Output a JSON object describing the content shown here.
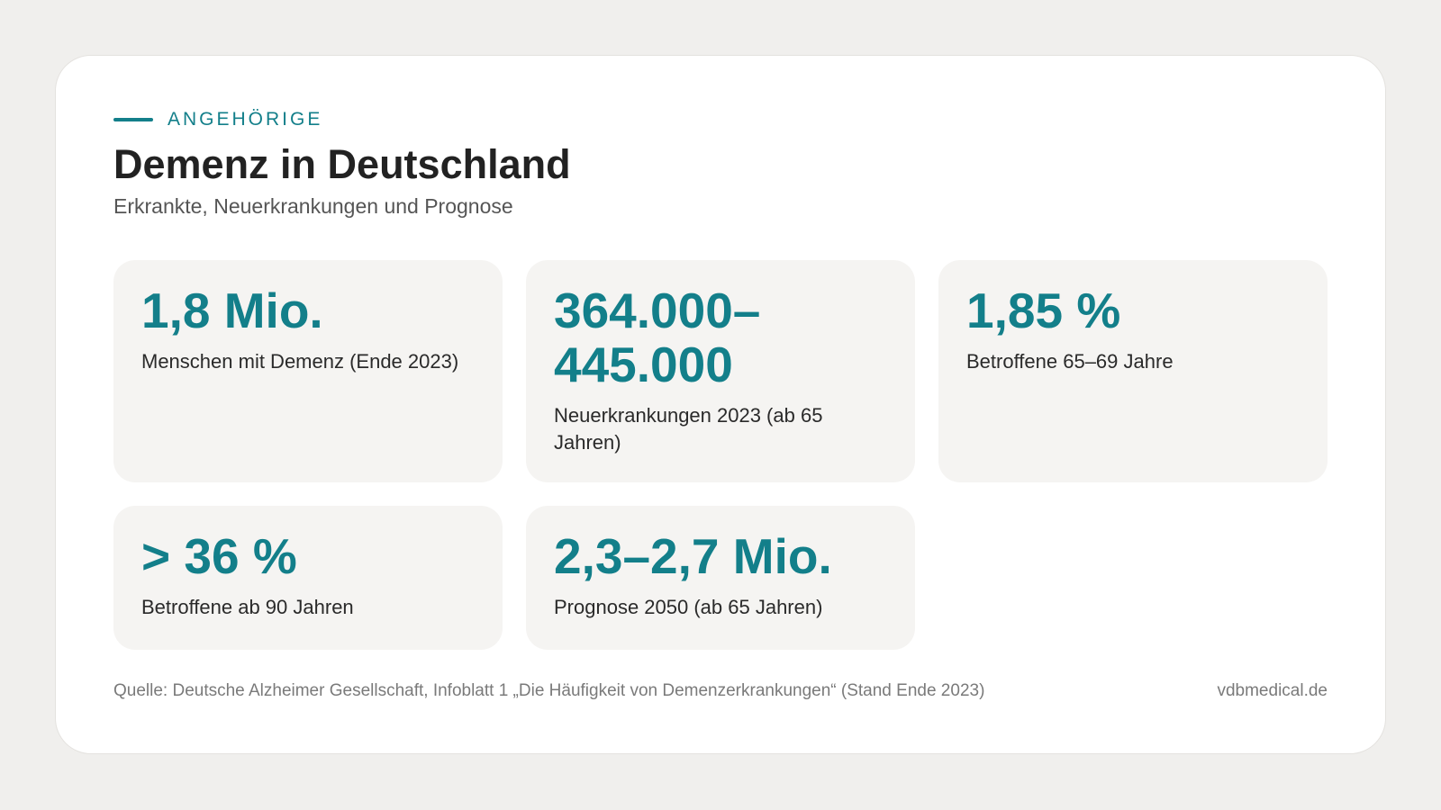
{
  "header": {
    "eyebrow": "ANGEHÖRIGE",
    "title": "Demenz in Deutschland",
    "subtitle": "Erkrankte, Neuerkrankungen und Prognose"
  },
  "stats": [
    {
      "value": "1,8 Mio.",
      "label": "Menschen mit Demenz (Ende 2023)"
    },
    {
      "value": "364.000–445.000",
      "label": "Neuerkrankungen 2023 (ab 65 Jahren)"
    },
    {
      "value": "1,85 %",
      "label": "Betroffene 65–69 Jahre"
    },
    {
      "value": "> 36 %",
      "label": "Betroffene ab 90 Jahren"
    },
    {
      "value": "2,3–2,7 Mio.",
      "label": "Prognose 2050 (ab 65 Jahren)"
    }
  ],
  "footer": {
    "source": "Quelle: Deutsche Alzheimer Gesellschaft, Infoblatt 1 „Die Häufigkeit von Demenzerkrankungen“ (Stand Ende 2023)",
    "brand": "vdbmedical.de"
  },
  "colors": {
    "accent": "#137f8a",
    "card_background": "#f5f4f2",
    "page_background": "#f0efed"
  }
}
